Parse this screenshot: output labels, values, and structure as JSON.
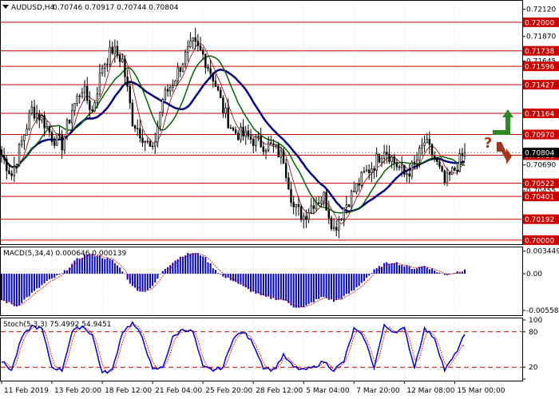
{
  "header": {
    "symbol": "AUDUSD,H4",
    "ohlc": "0.70746 0.70917 0.70744 0.70804"
  },
  "panels": {
    "macd": {
      "label": "MACD(5,34,4) 0.000646 0.000139"
    },
    "stoch": {
      "label": "Stoch(5,3,3) 75.4992 54.9451"
    }
  },
  "colors": {
    "background": "#ffffff",
    "grid": "#c8c8c8",
    "candle": "#000000",
    "ma_blue": "#000080",
    "ma_green": "#006400",
    "ma_red": "#8b0000",
    "level_red": "#cc0000",
    "tag_red": "#cc0000",
    "macd_bar": "#0000cc",
    "macd_signal": "#cc0000",
    "stoch_main": "#0000cc",
    "stoch_signal": "#cc0000",
    "arrow_up": "#2e8b22",
    "arrow_down": "#a0361c",
    "question": "#a0361c"
  },
  "chart_data": [
    {
      "type": "candlestick",
      "panel": "price",
      "y_range": [
        0.6997,
        0.7219
      ],
      "y_ticks": [
        "0.72120",
        "0.71870",
        "0.71645",
        "0.71427",
        "0.71164",
        "0.70970",
        "0.70690",
        "0.70455",
        "0.70192",
        "0.70000"
      ],
      "tagged_levels": [
        {
          "value": 0.72,
          "label": "0.72000",
          "color": "#cc0000"
        },
        {
          "value": 0.71738,
          "label": "0.71738",
          "color": "#cc0000"
        },
        {
          "value": 0.71596,
          "label": "0.71596",
          "color": "#cc0000"
        },
        {
          "value": 0.71427,
          "label": "0.71427",
          "color": "#cc0000"
        },
        {
          "value": 0.71164,
          "label": "0.71164",
          "color": "#cc0000"
        },
        {
          "value": 0.7097,
          "label": "0.70970",
          "color": "#cc0000"
        },
        {
          "value": 0.7078,
          "label": "0.70780",
          "color": "#cc0000"
        },
        {
          "value": 0.70804,
          "label": "0.70804",
          "color": "#000000"
        },
        {
          "value": 0.70522,
          "label": "0.70522",
          "color": "#cc0000"
        },
        {
          "value": 0.70401,
          "label": "0.70401",
          "color": "#cc0000"
        },
        {
          "value": 0.70192,
          "label": "0.70192",
          "color": "#cc0000"
        },
        {
          "value": 0.7,
          "label": "0.70000",
          "color": "#cc0000"
        }
      ],
      "x_labels": [
        "11 Feb 2019",
        "13 Feb 20:00",
        "18 Feb 12:00",
        "21 Feb 04:00",
        "25 Feb 20:00",
        "28 Feb 12:00",
        "5 Mar 04:00",
        "7 Mar 20:00",
        "12 Mar 08:00",
        "15 Mar 00:00"
      ],
      "close_anchors": [
        [
          0,
          0.7078
        ],
        [
          4,
          0.706
        ],
        [
          8,
          0.709
        ],
        [
          12,
          0.712
        ],
        [
          16,
          0.7112
        ],
        [
          20,
          0.7095
        ],
        [
          24,
          0.7088
        ],
        [
          28,
          0.712
        ],
        [
          32,
          0.714
        ],
        [
          36,
          0.7118
        ],
        [
          40,
          0.716
        ],
        [
          44,
          0.7175
        ],
        [
          48,
          0.7165
        ],
        [
          52,
          0.711
        ],
        [
          56,
          0.7096
        ],
        [
          60,
          0.708
        ],
        [
          64,
          0.713
        ],
        [
          68,
          0.7145
        ],
        [
          72,
          0.7165
        ],
        [
          76,
          0.718
        ],
        [
          80,
          0.717
        ],
        [
          84,
          0.715
        ],
        [
          88,
          0.712
        ],
        [
          92,
          0.71
        ],
        [
          96,
          0.7096
        ],
        [
          100,
          0.7092
        ],
        [
          104,
          0.7088
        ],
        [
          108,
          0.7085
        ],
        [
          112,
          0.7075
        ],
        [
          116,
          0.703
        ],
        [
          120,
          0.7022
        ],
        [
          124,
          0.7035
        ],
        [
          128,
          0.704
        ],
        [
          132,
          0.701
        ],
        [
          136,
          0.703
        ],
        [
          140,
          0.7045
        ],
        [
          144,
          0.706
        ],
        [
          148,
          0.707
        ],
        [
          152,
          0.7085
        ],
        [
          156,
          0.7072
        ],
        [
          160,
          0.706
        ],
        [
          164,
          0.7068
        ],
        [
          168,
          0.709
        ],
        [
          172,
          0.7075
        ],
        [
          176,
          0.7052
        ],
        [
          180,
          0.7065
        ],
        [
          184,
          0.70804
        ]
      ],
      "annotations": [
        {
          "type": "arrow-up",
          "text": ""
        },
        {
          "type": "arrow-down",
          "text": ""
        },
        {
          "type": "question-mark",
          "text": "?"
        }
      ]
    },
    {
      "type": "bar",
      "panel": "macd",
      "y_range": [
        -0.0062,
        0.0039
      ],
      "y_ticks": [
        "0.003449",
        "0.00",
        "-0.005583"
      ],
      "hist_anchors": [
        [
          0,
          -0.004
        ],
        [
          6,
          -0.005
        ],
        [
          12,
          -0.003
        ],
        [
          18,
          -0.0012
        ],
        [
          24,
          0.0
        ],
        [
          30,
          0.0022
        ],
        [
          34,
          0.003
        ],
        [
          38,
          0.0028
        ],
        [
          44,
          0.002
        ],
        [
          48,
          0.0005
        ],
        [
          52,
          -0.002
        ],
        [
          56,
          -0.0028
        ],
        [
          60,
          -0.002
        ],
        [
          64,
          0.0005
        ],
        [
          68,
          0.0018
        ],
        [
          72,
          0.0028
        ],
        [
          76,
          0.0032
        ],
        [
          80,
          0.0028
        ],
        [
          84,
          0.001
        ],
        [
          88,
          -0.0005
        ],
        [
          92,
          -0.001
        ],
        [
          96,
          -0.002
        ],
        [
          100,
          -0.0028
        ],
        [
          104,
          -0.0035
        ],
        [
          108,
          -0.0038
        ],
        [
          112,
          -0.004
        ],
        [
          116,
          -0.005
        ],
        [
          120,
          -0.0052
        ],
        [
          124,
          -0.0042
        ],
        [
          128,
          -0.0035
        ],
        [
          132,
          -0.0042
        ],
        [
          136,
          -0.0035
        ],
        [
          140,
          -0.0025
        ],
        [
          144,
          -0.001
        ],
        [
          148,
          0.0005
        ],
        [
          152,
          0.0015
        ],
        [
          156,
          0.0018
        ],
        [
          160,
          0.0012
        ],
        [
          164,
          0.0008
        ],
        [
          168,
          0.0012
        ],
        [
          172,
          0.0005
        ],
        [
          176,
          -0.0002
        ],
        [
          180,
          0.0002
        ],
        [
          184,
          0.000646
        ]
      ],
      "signal_last": 0.000139
    },
    {
      "type": "line",
      "panel": "stoch",
      "y_range": [
        0,
        100
      ],
      "y_ticks": [
        "100",
        "80",
        "20",
        "0"
      ],
      "dashed_levels": [
        80,
        20
      ],
      "k_anchors": [
        [
          0,
          30
        ],
        [
          4,
          15
        ],
        [
          8,
          70
        ],
        [
          12,
          90
        ],
        [
          16,
          85
        ],
        [
          20,
          20
        ],
        [
          24,
          15
        ],
        [
          28,
          80
        ],
        [
          32,
          90
        ],
        [
          36,
          75
        ],
        [
          40,
          10
        ],
        [
          44,
          15
        ],
        [
          48,
          80
        ],
        [
          52,
          95
        ],
        [
          56,
          70
        ],
        [
          60,
          15
        ],
        [
          64,
          20
        ],
        [
          68,
          70
        ],
        [
          72,
          85
        ],
        [
          76,
          80
        ],
        [
          80,
          20
        ],
        [
          84,
          15
        ],
        [
          88,
          20
        ],
        [
          92,
          70
        ],
        [
          96,
          80
        ],
        [
          100,
          60
        ],
        [
          104,
          20
        ],
        [
          108,
          15
        ],
        [
          112,
          40
        ],
        [
          116,
          20
        ],
        [
          120,
          15
        ],
        [
          124,
          20
        ],
        [
          128,
          30
        ],
        [
          132,
          15
        ],
        [
          136,
          30
        ],
        [
          140,
          85
        ],
        [
          144,
          70
        ],
        [
          148,
          20
        ],
        [
          152,
          90
        ],
        [
          156,
          80
        ],
        [
          160,
          85
        ],
        [
          164,
          20
        ],
        [
          168,
          85
        ],
        [
          172,
          70
        ],
        [
          176,
          15
        ],
        [
          180,
          40
        ],
        [
          184,
          75.4992
        ]
      ],
      "d_last": 54.9451
    }
  ]
}
